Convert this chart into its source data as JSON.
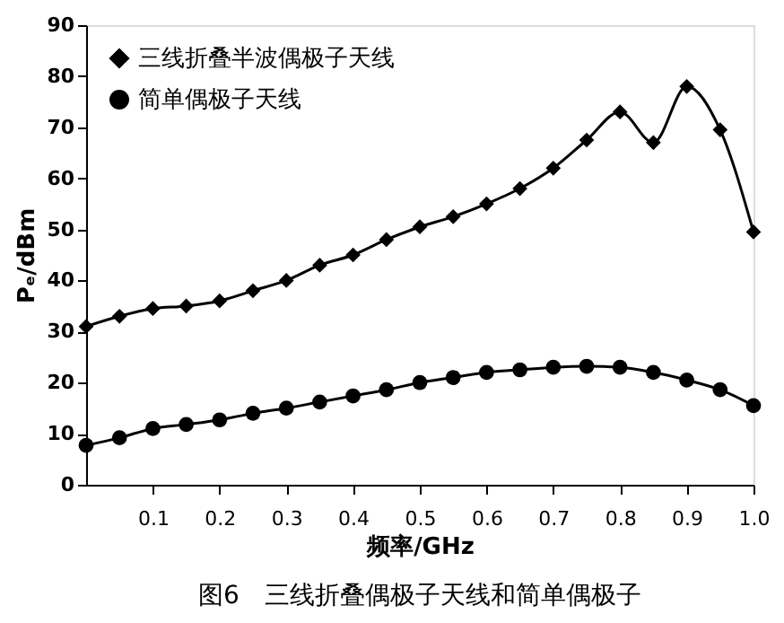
{
  "chart_data": {
    "type": "line",
    "xlabel": "频率/GHz",
    "ylabel": "Pₑ/dBm",
    "annotations": [
      "图6　三线折叠偶极子天线和简单偶极子"
    ],
    "x": [
      0,
      0.05,
      0.1,
      0.15,
      0.2,
      0.25,
      0.3,
      0.35,
      0.4,
      0.45,
      0.5,
      0.55,
      0.6,
      0.65,
      0.7,
      0.75,
      0.8,
      0.85,
      0.9,
      0.95,
      1.0
    ],
    "series": [
      {
        "name": "三线折叠半波偶极子天线",
        "color": "#000000",
        "marker": "diamond",
        "values": [
          31,
          33,
          34.5,
          35,
          36,
          38,
          40,
          43,
          45,
          48,
          50.5,
          52.5,
          55,
          58,
          62,
          67.5,
          73,
          67,
          78,
          69.5,
          49.5
        ]
      },
      {
        "name": "简单偶极子天线",
        "color": "#000000",
        "marker": "circle",
        "values": [
          7.7,
          9.2,
          11,
          11.8,
          12.7,
          14,
          15,
          16.2,
          17.4,
          18.6,
          20,
          21,
          22,
          22.5,
          23,
          23.2,
          23,
          22,
          20.5,
          18.6,
          15.5
        ]
      }
    ],
    "xlim": [
      0,
      1.0
    ],
    "xticks": [
      0.1,
      0.2,
      0.3,
      0.4,
      0.5,
      0.6,
      0.7,
      0.8,
      0.9,
      {
        "value": 1.0,
        "label": "1.0"
      }
    ],
    "ylim": [
      0,
      90
    ],
    "yticks": [
      0,
      10,
      20,
      30,
      40,
      50,
      60,
      70,
      80,
      90
    ],
    "grid": false,
    "legend": "top left",
    "line_style": "solid"
  }
}
